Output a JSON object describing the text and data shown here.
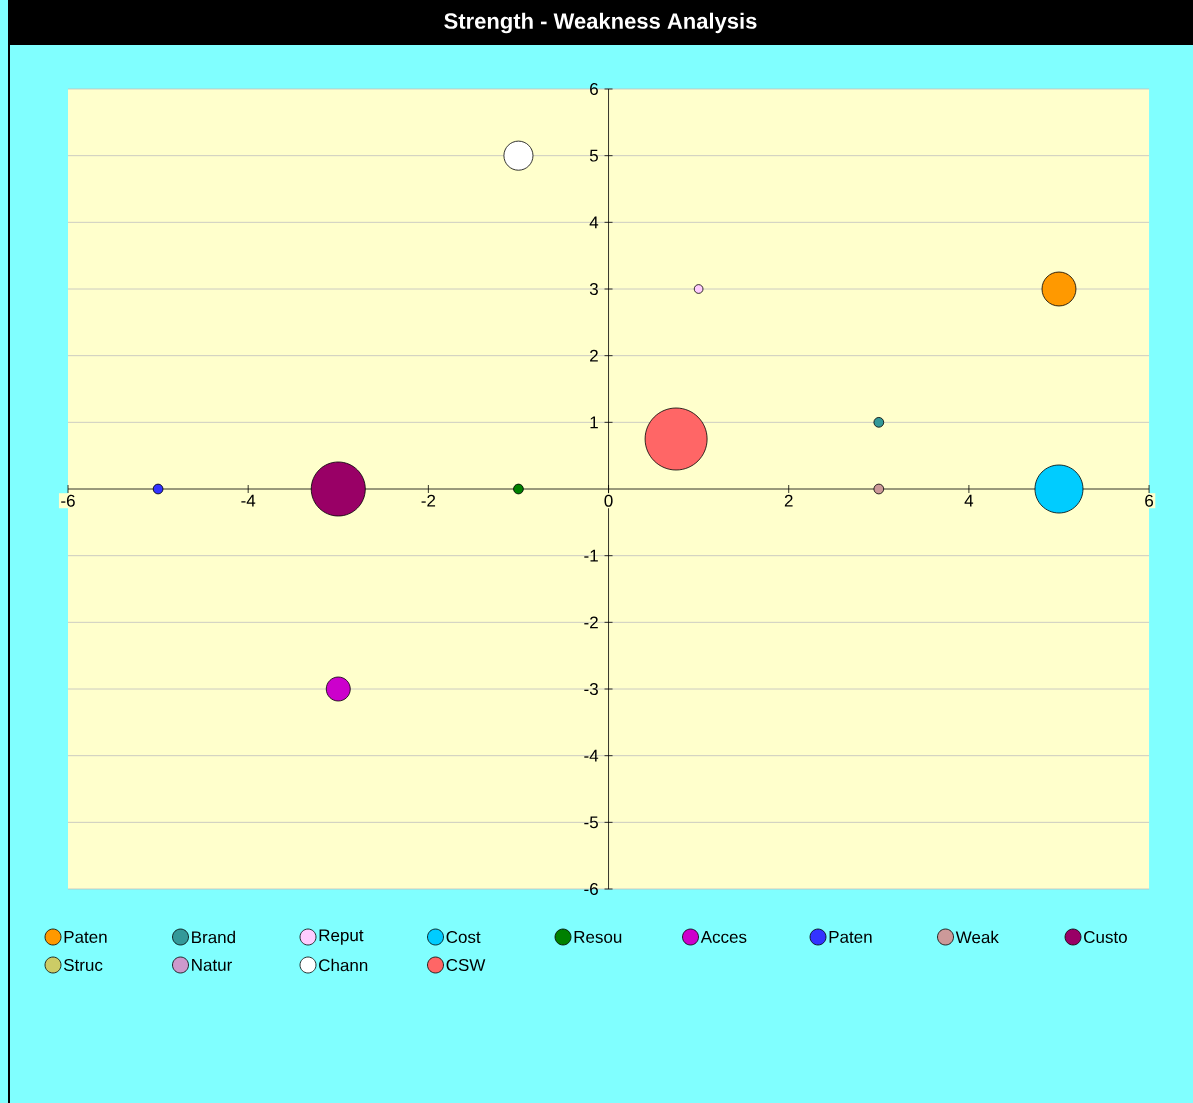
{
  "chart_data": {
    "type": "bubble",
    "title": "Strength - Weakness Analysis",
    "xlim": [
      -6,
      6
    ],
    "ylim": [
      -6,
      6
    ],
    "xticks": [
      -6,
      -4,
      -2,
      0,
      2,
      4,
      6
    ],
    "yticks": [
      -6,
      -5,
      -4,
      -3,
      -2,
      -1,
      1,
      2,
      3,
      4,
      5,
      6
    ],
    "grid": "y",
    "legend": "bottom",
    "marker": "circle",
    "series": [
      {
        "name": "Paten",
        "color": "#ff9900",
        "x": [
          5
        ],
        "values": [
          3
        ],
        "sizes": [
          0.3
        ]
      },
      {
        "name": "Brand",
        "color": "#339999",
        "x": [
          3
        ],
        "values": [
          1
        ],
        "sizes": [
          0.025
        ]
      },
      {
        "name": "Reput",
        "color": "#ffccff",
        "x": [
          1
        ],
        "values": [
          3
        ],
        "sizes": [
          0.02
        ]
      },
      {
        "name": "Cost",
        "color": "#00ccff",
        "x": [
          5
        ],
        "values": [
          0
        ],
        "sizes": [
          0.6
        ]
      },
      {
        "name": "Resou",
        "color": "#008000",
        "x": [
          -1
        ],
        "values": [
          0
        ],
        "sizes": [
          0.025
        ]
      },
      {
        "name": "Acces",
        "color": "#cc00cc",
        "x": [
          -3
        ],
        "values": [
          -3
        ],
        "sizes": [
          0.15
        ]
      },
      {
        "name": "Paten",
        "color": "#3333ff",
        "x": [
          -5
        ],
        "values": [
          0
        ],
        "sizes": [
          0.025
        ]
      },
      {
        "name": "Weak",
        "color": "#cc9999",
        "x": [
          3
        ],
        "values": [
          0
        ],
        "sizes": [
          0.025
        ]
      },
      {
        "name": "Custo",
        "color": "#990066",
        "x": [
          -3
        ],
        "values": [
          0
        ],
        "sizes": [
          0.76
        ]
      },
      {
        "name": "Struc",
        "color": "#cccc66"
      },
      {
        "name": "Natur",
        "color": "#cc99cc"
      },
      {
        "name": "Chann",
        "color": "#ffffff",
        "x": [
          -1
        ],
        "values": [
          5
        ],
        "sizes": [
          0.22
        ]
      },
      {
        "name": "CSW",
        "color": "#ff6666",
        "x": [
          0.75
        ],
        "values": [
          0.75
        ],
        "sizes": [
          1
        ]
      }
    ]
  }
}
